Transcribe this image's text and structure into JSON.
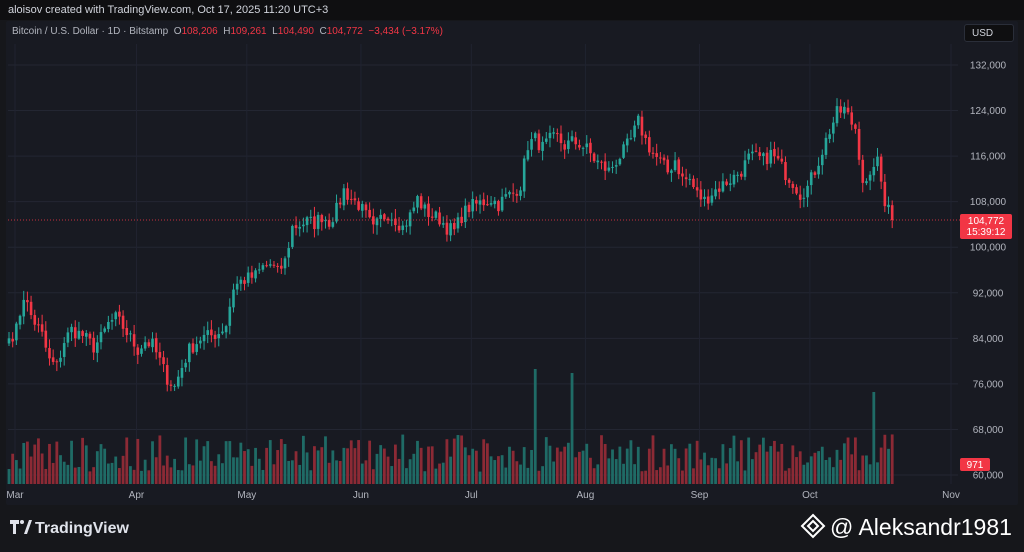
{
  "header": {
    "credit": "aloisov created with TradingView.com, Oct 17, 2025 11:20 UTC+3"
  },
  "symbol": {
    "name": "Bitcoin / U.S. Dollar · 1D · Bitstamp",
    "o_label": "O",
    "o": "108,206",
    "h_label": "H",
    "h": "109,261",
    "l_label": "L",
    "l": "104,490",
    "c_label": "C",
    "c": "104,772",
    "change": "−3,434 (−3.17%)"
  },
  "currency_button": "USD",
  "price_tag": {
    "price": "104,772",
    "countdown": "15:39:12"
  },
  "volume_tag": "971",
  "footer": {
    "brand": "TradingView",
    "watermark": "@ Aleksandr1981"
  },
  "colors": {
    "up": "#26a69a",
    "down": "#f23645",
    "up_volume": "#1f6b66",
    "down_volume": "#8c2a35"
  },
  "chart_data": {
    "type": "candlestick",
    "title": "Bitcoin / U.S. Dollar · 1D · Bitstamp",
    "y_ticks": [
      60000,
      68000,
      76000,
      84000,
      92000,
      100000,
      108000,
      116000,
      124000,
      132000
    ],
    "y_tick_labels": [
      "60,000",
      "68,000",
      "76,000",
      "84,000",
      "92,000",
      "100,000",
      "108,000",
      "116,000",
      "124,000",
      "132,000"
    ],
    "x_tick_labels": [
      "Mar",
      "Apr",
      "May",
      "Jun",
      "Jul",
      "Aug",
      "Sep",
      "Oct",
      "Nov"
    ],
    "ylim": [
      57000,
      134500
    ],
    "last_price": 104772,
    "grid": true,
    "series": [
      {
        "kind": "close_keyframes",
        "points": [
          [
            0,
            84000
          ],
          [
            2,
            85500
          ],
          [
            4,
            91500
          ],
          [
            6,
            88000
          ],
          [
            9,
            84500
          ],
          [
            11,
            80000
          ],
          [
            13,
            79000
          ],
          [
            15,
            83500
          ],
          [
            17,
            85500
          ],
          [
            20,
            84500
          ],
          [
            23,
            82500
          ],
          [
            25,
            84000
          ],
          [
            27,
            86500
          ],
          [
            29,
            87500
          ],
          [
            31,
            86000
          ],
          [
            33,
            84000
          ],
          [
            35,
            82000
          ],
          [
            37,
            83500
          ],
          [
            39,
            82800
          ],
          [
            41,
            80000
          ],
          [
            43,
            77000
          ],
          [
            45,
            75500
          ],
          [
            47,
            79000
          ],
          [
            49,
            82000
          ],
          [
            52,
            84000
          ],
          [
            55,
            84500
          ],
          [
            57,
            85000
          ],
          [
            59,
            86500
          ],
          [
            61,
            93000
          ],
          [
            63,
            94000
          ],
          [
            65,
            94500
          ],
          [
            67,
            95000
          ],
          [
            69,
            96500
          ],
          [
            71,
            97000
          ],
          [
            73,
            95500
          ],
          [
            75,
            97500
          ],
          [
            77,
            103500
          ],
          [
            79,
            104000
          ],
          [
            81,
            104500
          ],
          [
            83,
            104200
          ],
          [
            85,
            105500
          ],
          [
            87,
            104500
          ],
          [
            89,
            106500
          ],
          [
            91,
            110000
          ],
          [
            93,
            108500
          ],
          [
            95,
            107500
          ],
          [
            97,
            105500
          ],
          [
            99,
            103000
          ],
          [
            101,
            105000
          ],
          [
            103,
            106000
          ],
          [
            105,
            105000
          ],
          [
            107,
            103500
          ],
          [
            109,
            105500
          ],
          [
            111,
            108500
          ],
          [
            113,
            106500
          ],
          [
            115,
            105500
          ],
          [
            117,
            105000
          ],
          [
            119,
            103500
          ],
          [
            121,
            102800
          ],
          [
            123,
            105500
          ],
          [
            125,
            107000
          ],
          [
            127,
            107500
          ],
          [
            129,
            108000
          ],
          [
            131,
            108500
          ],
          [
            133,
            107500
          ],
          [
            135,
            108800
          ],
          [
            137,
            109500
          ],
          [
            139,
            111000
          ],
          [
            141,
            118000
          ],
          [
            143,
            119000
          ],
          [
            145,
            117500
          ],
          [
            147,
            118800
          ],
          [
            149,
            119200
          ],
          [
            151,
            117800
          ],
          [
            153,
            118500
          ],
          [
            155,
            118200
          ],
          [
            157,
            117200
          ],
          [
            159,
            115500
          ],
          [
            161,
            114300
          ],
          [
            163,
            113400
          ],
          [
            165,
            115200
          ],
          [
            167,
            116800
          ],
          [
            169,
            118800
          ],
          [
            171,
            122000
          ],
          [
            173,
            118800
          ],
          [
            175,
            116400
          ],
          [
            177,
            115000
          ],
          [
            179,
            113200
          ],
          [
            181,
            115400
          ],
          [
            183,
            112000
          ],
          [
            185,
            111800
          ],
          [
            187,
            109300
          ],
          [
            189,
            108200
          ],
          [
            191,
            109600
          ],
          [
            193,
            110500
          ],
          [
            195,
            111500
          ],
          [
            197,
            112300
          ],
          [
            199,
            113500
          ],
          [
            201,
            115600
          ],
          [
            203,
            115800
          ],
          [
            205,
            115300
          ],
          [
            207,
            116400
          ],
          [
            209,
            115000
          ],
          [
            211,
            113000
          ],
          [
            213,
            111500
          ],
          [
            215,
            109400
          ],
          [
            217,
            110500
          ],
          [
            219,
            113500
          ],
          [
            221,
            117000
          ],
          [
            223,
            120500
          ],
          [
            225,
            123500
          ],
          [
            227,
            124200
          ],
          [
            229,
            121800
          ],
          [
            230,
            121000
          ],
          [
            231,
            116500
          ],
          [
            232,
            112000
          ],
          [
            233,
            110800
          ],
          [
            234,
            111500
          ],
          [
            235,
            115000
          ],
          [
            236,
            114800
          ],
          [
            237,
            111500
          ],
          [
            238,
            108200
          ],
          [
            239,
            108206
          ],
          [
            240,
            104772
          ]
        ]
      }
    ]
  }
}
